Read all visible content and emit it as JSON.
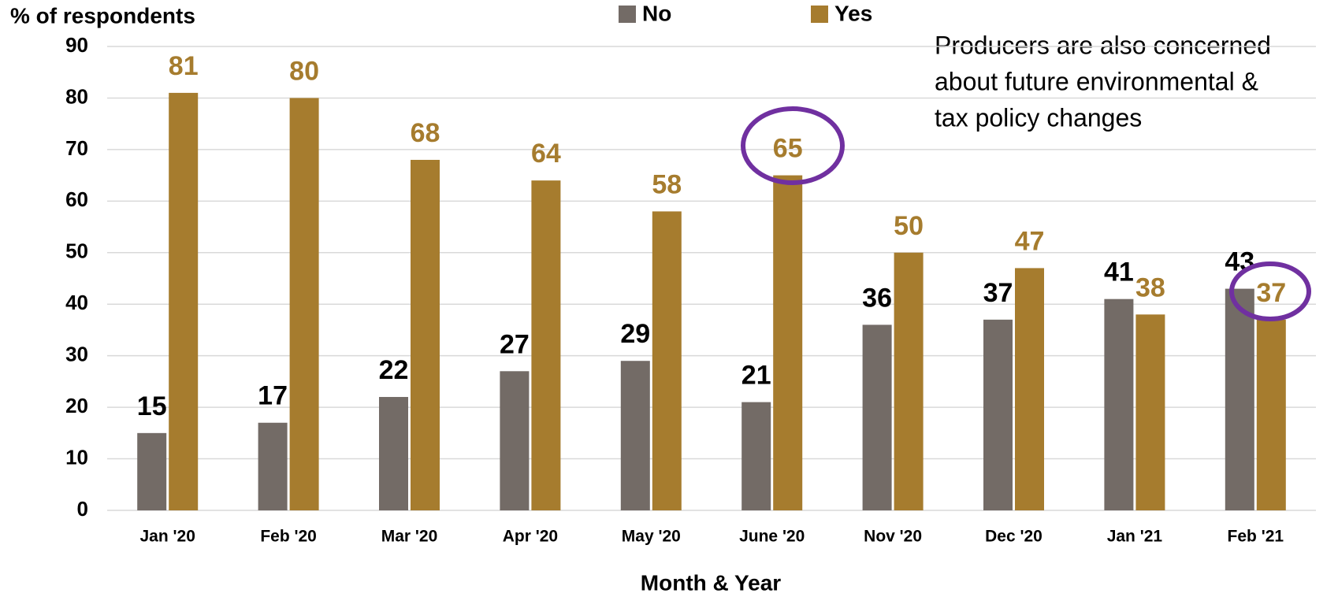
{
  "chart_data": {
    "type": "bar",
    "y_label": "% of respondents",
    "x_label": "Month & Year",
    "annotation": [
      "Producers are also concerned",
      "about future environmental &",
      "tax policy changes"
    ],
    "categories": [
      "Jan '20",
      "Feb '20",
      "Mar '20",
      "Apr '20",
      "May '20",
      "June '20",
      "Nov '20",
      "Dec '20",
      "Jan '21",
      "Feb '21"
    ],
    "series": [
      {
        "name": "No",
        "color": "#736b66",
        "label_color": "#000000",
        "values": [
          15,
          17,
          22,
          27,
          29,
          21,
          36,
          37,
          41,
          43
        ]
      },
      {
        "name": "Yes",
        "color": "#a67c2e",
        "label_color": "#a67c2e",
        "values": [
          81,
          80,
          68,
          64,
          58,
          65,
          50,
          47,
          38,
          37
        ]
      }
    ],
    "ylim": [
      0,
      90
    ],
    "yticks": [
      0,
      10,
      20,
      30,
      40,
      50,
      60,
      70,
      80,
      90
    ],
    "grid": true
  }
}
